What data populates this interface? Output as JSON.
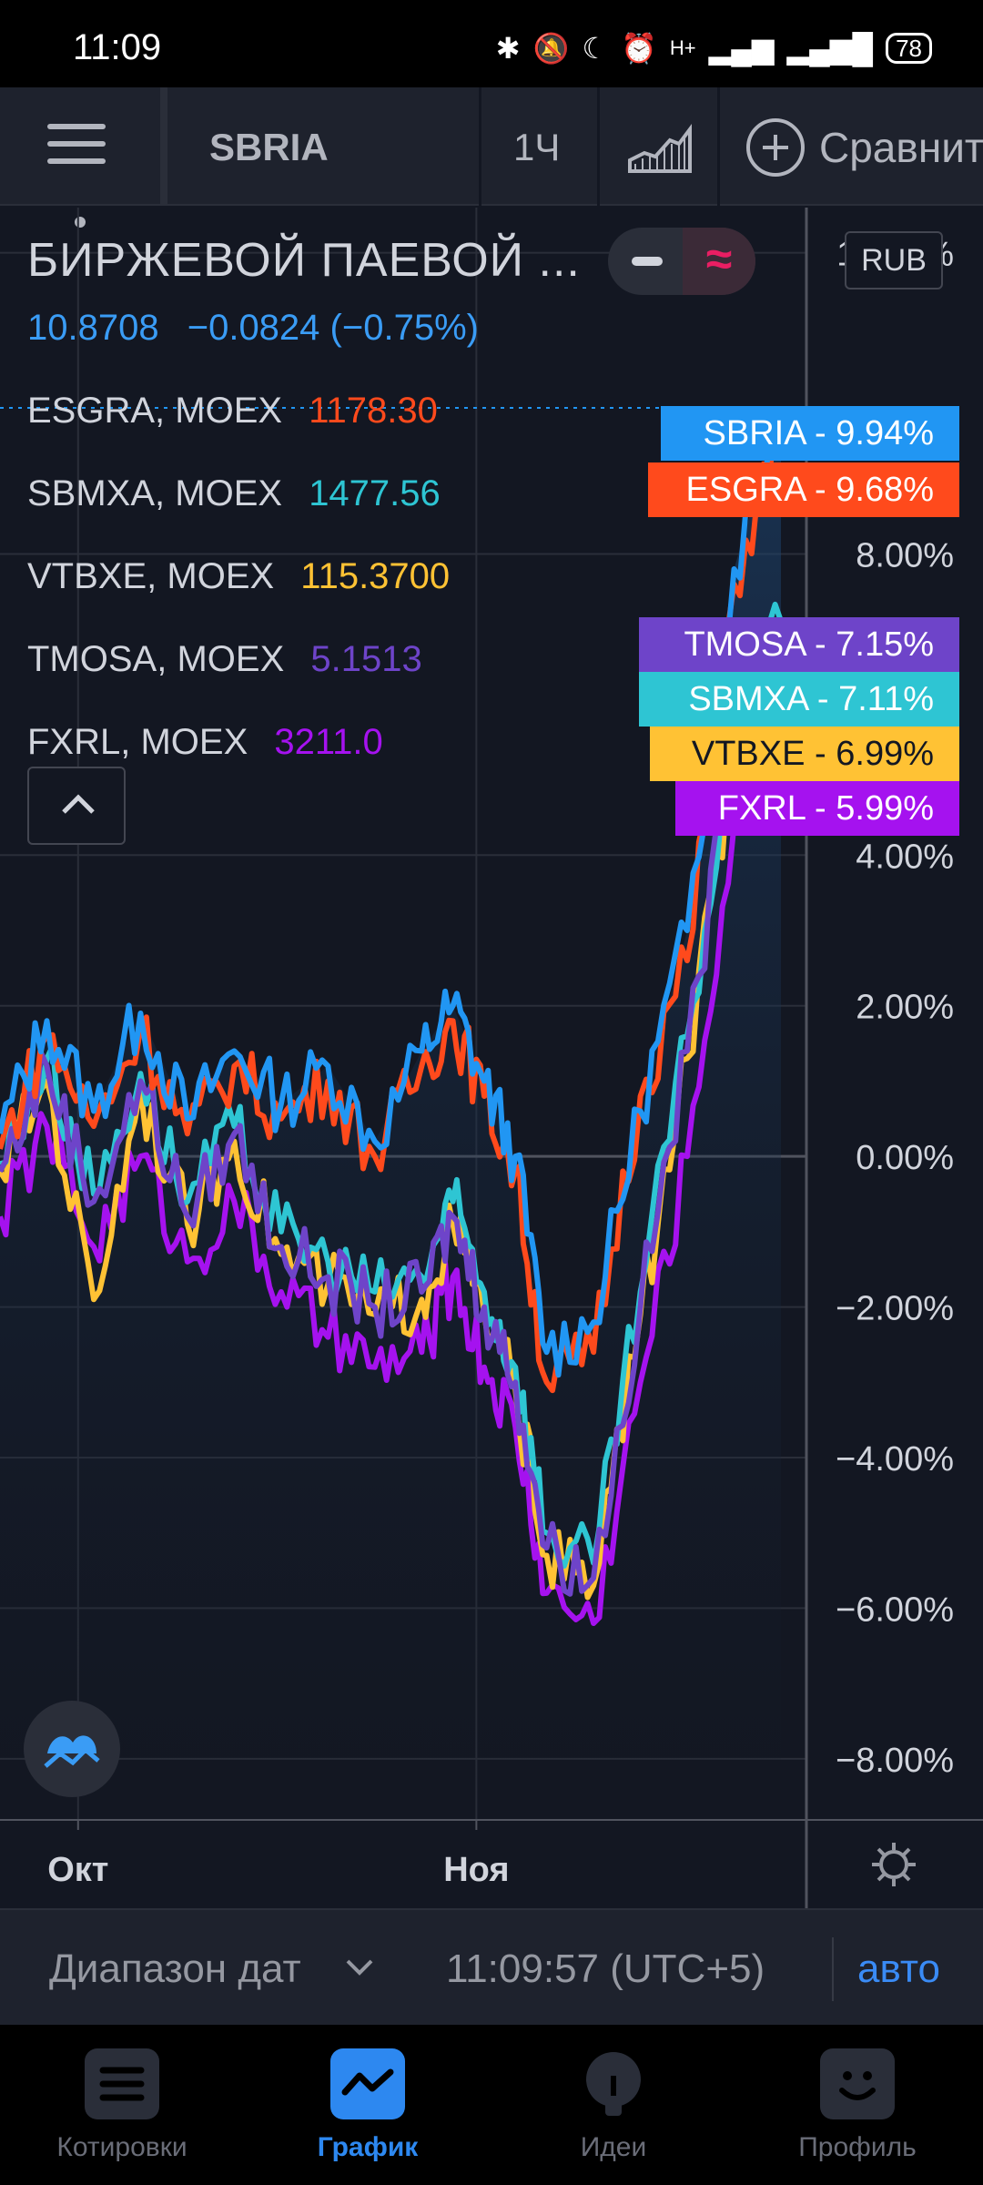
{
  "status": {
    "time": "11:09",
    "battery": "78",
    "network": "H+"
  },
  "toolbar": {
    "symbol": "SBRIA",
    "interval": "1Ч",
    "compare_label": "Сравнить"
  },
  "legend": {
    "title": "БИРЖЕВОЙ ПАЕВОЙ ...",
    "price": "10.8708",
    "change": "−0.0824 (−0.75%)",
    "rows": [
      {
        "symbol": "ESGRA, MOEX",
        "value": "1178.30",
        "color": "#ff4a1c"
      },
      {
        "symbol": "SBMXA, MOEX",
        "value": "1477.56",
        "color": "#2ec5d3"
      },
      {
        "symbol": "VTBXE, MOEX",
        "value": "115.3700",
        "color": "#ffc234"
      },
      {
        "symbol": "TMOSA, MOEX",
        "value": "5.1513",
        "color": "#6e44c9"
      },
      {
        "symbol": "FXRL, MOEX",
        "value": "3211.0",
        "color": "#a512ef"
      }
    ]
  },
  "toggle": {
    "compare_glyph": "≈"
  },
  "currency": "RUB",
  "badges": [
    {
      "label": "SBRIA",
      "value": "9.94%",
      "color": "#2196f3"
    },
    {
      "label": "ESGRA",
      "value": "9.68%",
      "color": "#ff4a1c"
    },
    {
      "label": "TMOSA",
      "value": "7.15%",
      "color": "#6e44c9"
    },
    {
      "label": "SBMXA",
      "value": "7.11%",
      "color": "#2ec5d3"
    },
    {
      "label": "VTBXE",
      "value": "6.99%",
      "color": "#ffc234"
    },
    {
      "label": "FXRL",
      "value": "5.99%",
      "color": "#a512ef"
    }
  ],
  "chart_data": {
    "type": "line",
    "y_unit": "%",
    "yticks": [
      "12.00%",
      "8.00%",
      "4.00%",
      "2.00%",
      "0.00%",
      "−2.00%",
      "−4.00%",
      "−6.00%",
      "−8.00%"
    ],
    "ytick_values": [
      12,
      8,
      4,
      2,
      0,
      -2,
      -4,
      -6,
      -8
    ],
    "ylim": [
      -8.8,
      12.6
    ],
    "xticks": [
      "Окт",
      "Ноя"
    ],
    "grid": true,
    "x": [
      0,
      6,
      12,
      18,
      24,
      30,
      36,
      42,
      48,
      54,
      58,
      62,
      66,
      70,
      76,
      82,
      88,
      94,
      100
    ],
    "series": [
      {
        "name": "SBRIA",
        "color": "#2196f3",
        "values": [
          0.3,
          1.8,
          0.6,
          1.9,
          0.5,
          1.4,
          0.7,
          1.2,
          0.2,
          1.4,
          2.0,
          1.0,
          0.0,
          -2.6,
          -2.2,
          0.6,
          3.0,
          7.8,
          9.94
        ]
      },
      {
        "name": "ESGRA",
        "color": "#ff4a1c",
        "values": [
          0.1,
          1.6,
          0.4,
          1.7,
          0.3,
          1.2,
          0.5,
          1.0,
          0.0,
          1.2,
          1.8,
          0.8,
          -0.2,
          -3.0,
          -2.6,
          0.8,
          2.6,
          7.6,
          9.68
        ]
      },
      {
        "name": "TMOSA",
        "color": "#6e44c9",
        "values": [
          -0.2,
          1.2,
          -0.6,
          1.0,
          -0.8,
          0.3,
          -1.2,
          -1.6,
          -2.0,
          -1.8,
          -0.8,
          -2.0,
          -3.0,
          -5.2,
          -5.6,
          -2.0,
          1.4,
          5.5,
          7.15
        ]
      },
      {
        "name": "SBMXA",
        "color": "#2ec5d3",
        "values": [
          -0.1,
          1.3,
          -0.5,
          1.1,
          -0.6,
          0.4,
          -1.0,
          -1.4,
          -1.8,
          -1.6,
          -0.6,
          -1.8,
          -2.8,
          -5.0,
          -5.4,
          -1.8,
          1.6,
          5.4,
          7.11
        ]
      },
      {
        "name": "VTBXE",
        "color": "#ffc234",
        "values": [
          -0.2,
          1.0,
          -1.9,
          0.9,
          -0.9,
          0.2,
          -1.3,
          -1.7,
          -2.1,
          -1.9,
          -0.9,
          -2.1,
          -3.1,
          -5.3,
          -5.7,
          -2.1,
          1.3,
          5.3,
          6.99
        ]
      },
      {
        "name": "FXRL",
        "color": "#a512ef",
        "values": [
          -0.8,
          0.4,
          -1.2,
          0.0,
          -1.4,
          -0.6,
          -1.8,
          -2.4,
          -2.8,
          -2.6,
          -1.6,
          -2.8,
          -3.6,
          -5.8,
          -6.2,
          -3.0,
          0.0,
          4.4,
          5.99
        ]
      }
    ]
  },
  "rangebar": {
    "label": "Диапазон дат",
    "time": "11:09:57 (UTC+5)",
    "auto": "авто"
  },
  "nav": [
    {
      "label": "Котировки",
      "icon": "quotes-icon",
      "active": false
    },
    {
      "label": "График",
      "icon": "chart-icon",
      "active": true
    },
    {
      "label": "Идеи",
      "icon": "ideas-icon",
      "active": false
    },
    {
      "label": "Профиль",
      "icon": "profile-icon",
      "active": false
    }
  ]
}
